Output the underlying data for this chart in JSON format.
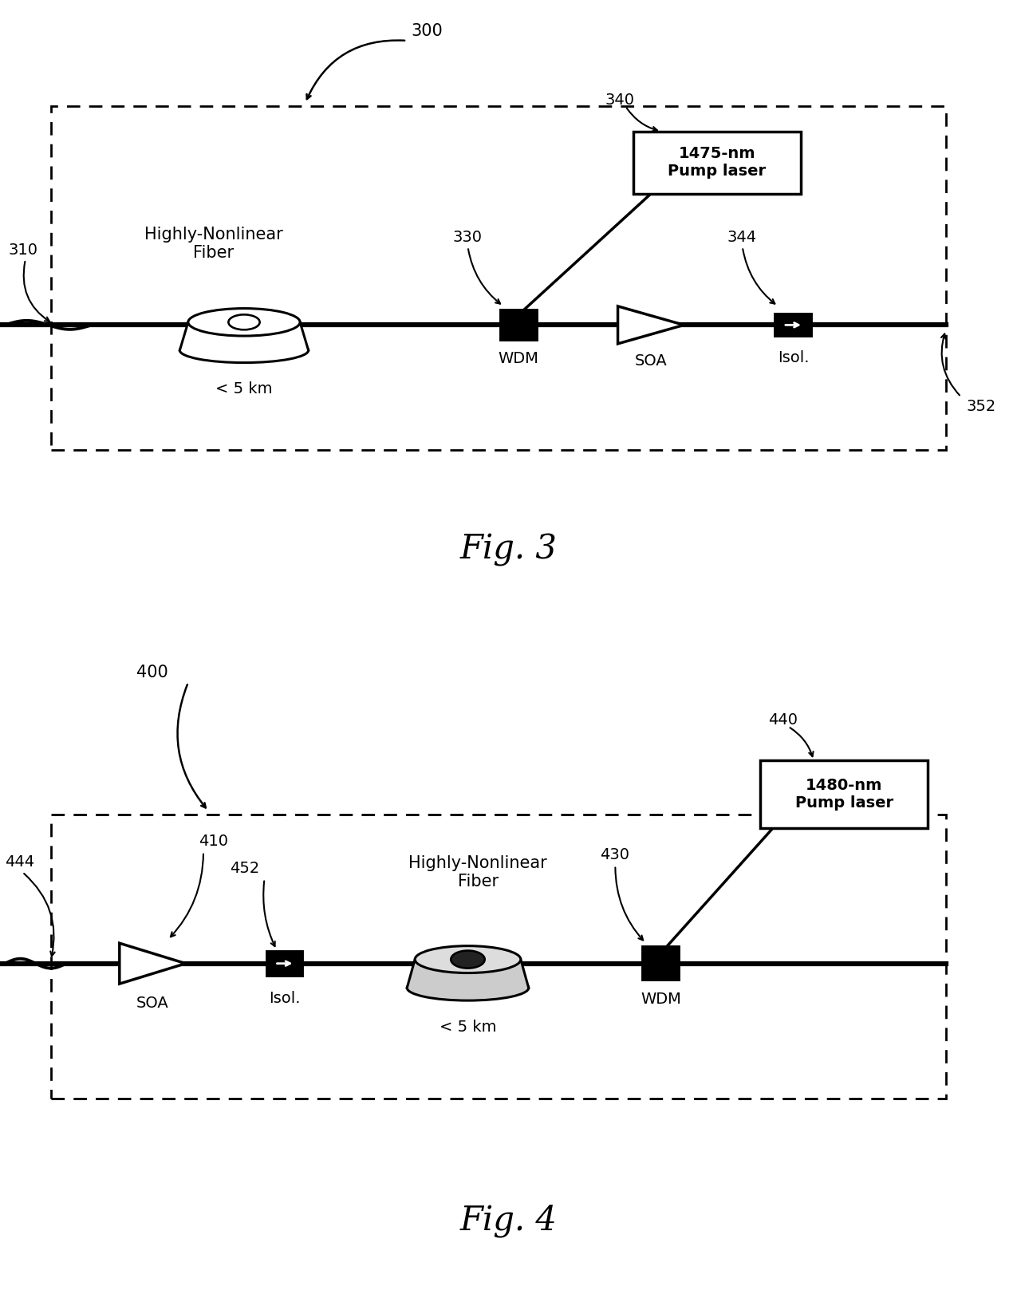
{
  "bg_color": "#ffffff",
  "fig3": {
    "box_label": "300",
    "input_label": "310",
    "output_label": "352",
    "fiber_label": "Highly-Nonlinear\nFiber",
    "fiber_dist": "< 5 km",
    "wdm_label": "WDM",
    "wdm_num": "330",
    "soa_label": "SOA",
    "soa_num": "344",
    "isol_label": "Isol.",
    "pump_label": "1475-nm\nPump laser",
    "pump_num": "340",
    "fig_label": "Fig. 3"
  },
  "fig4": {
    "box_label": "400",
    "input_label": "444",
    "fiber_label": "Highly-Nonlinear\nFiber",
    "fiber_dist": "< 5 km",
    "wdm_label": "WDM",
    "wdm_num": "430",
    "soa_label": "SOA",
    "soa_num": "410",
    "isol_label": "Isol.",
    "isol_num": "452",
    "pump_label": "1480-nm\nPump laser",
    "pump_num": "440",
    "fig_label": "Fig. 4"
  }
}
